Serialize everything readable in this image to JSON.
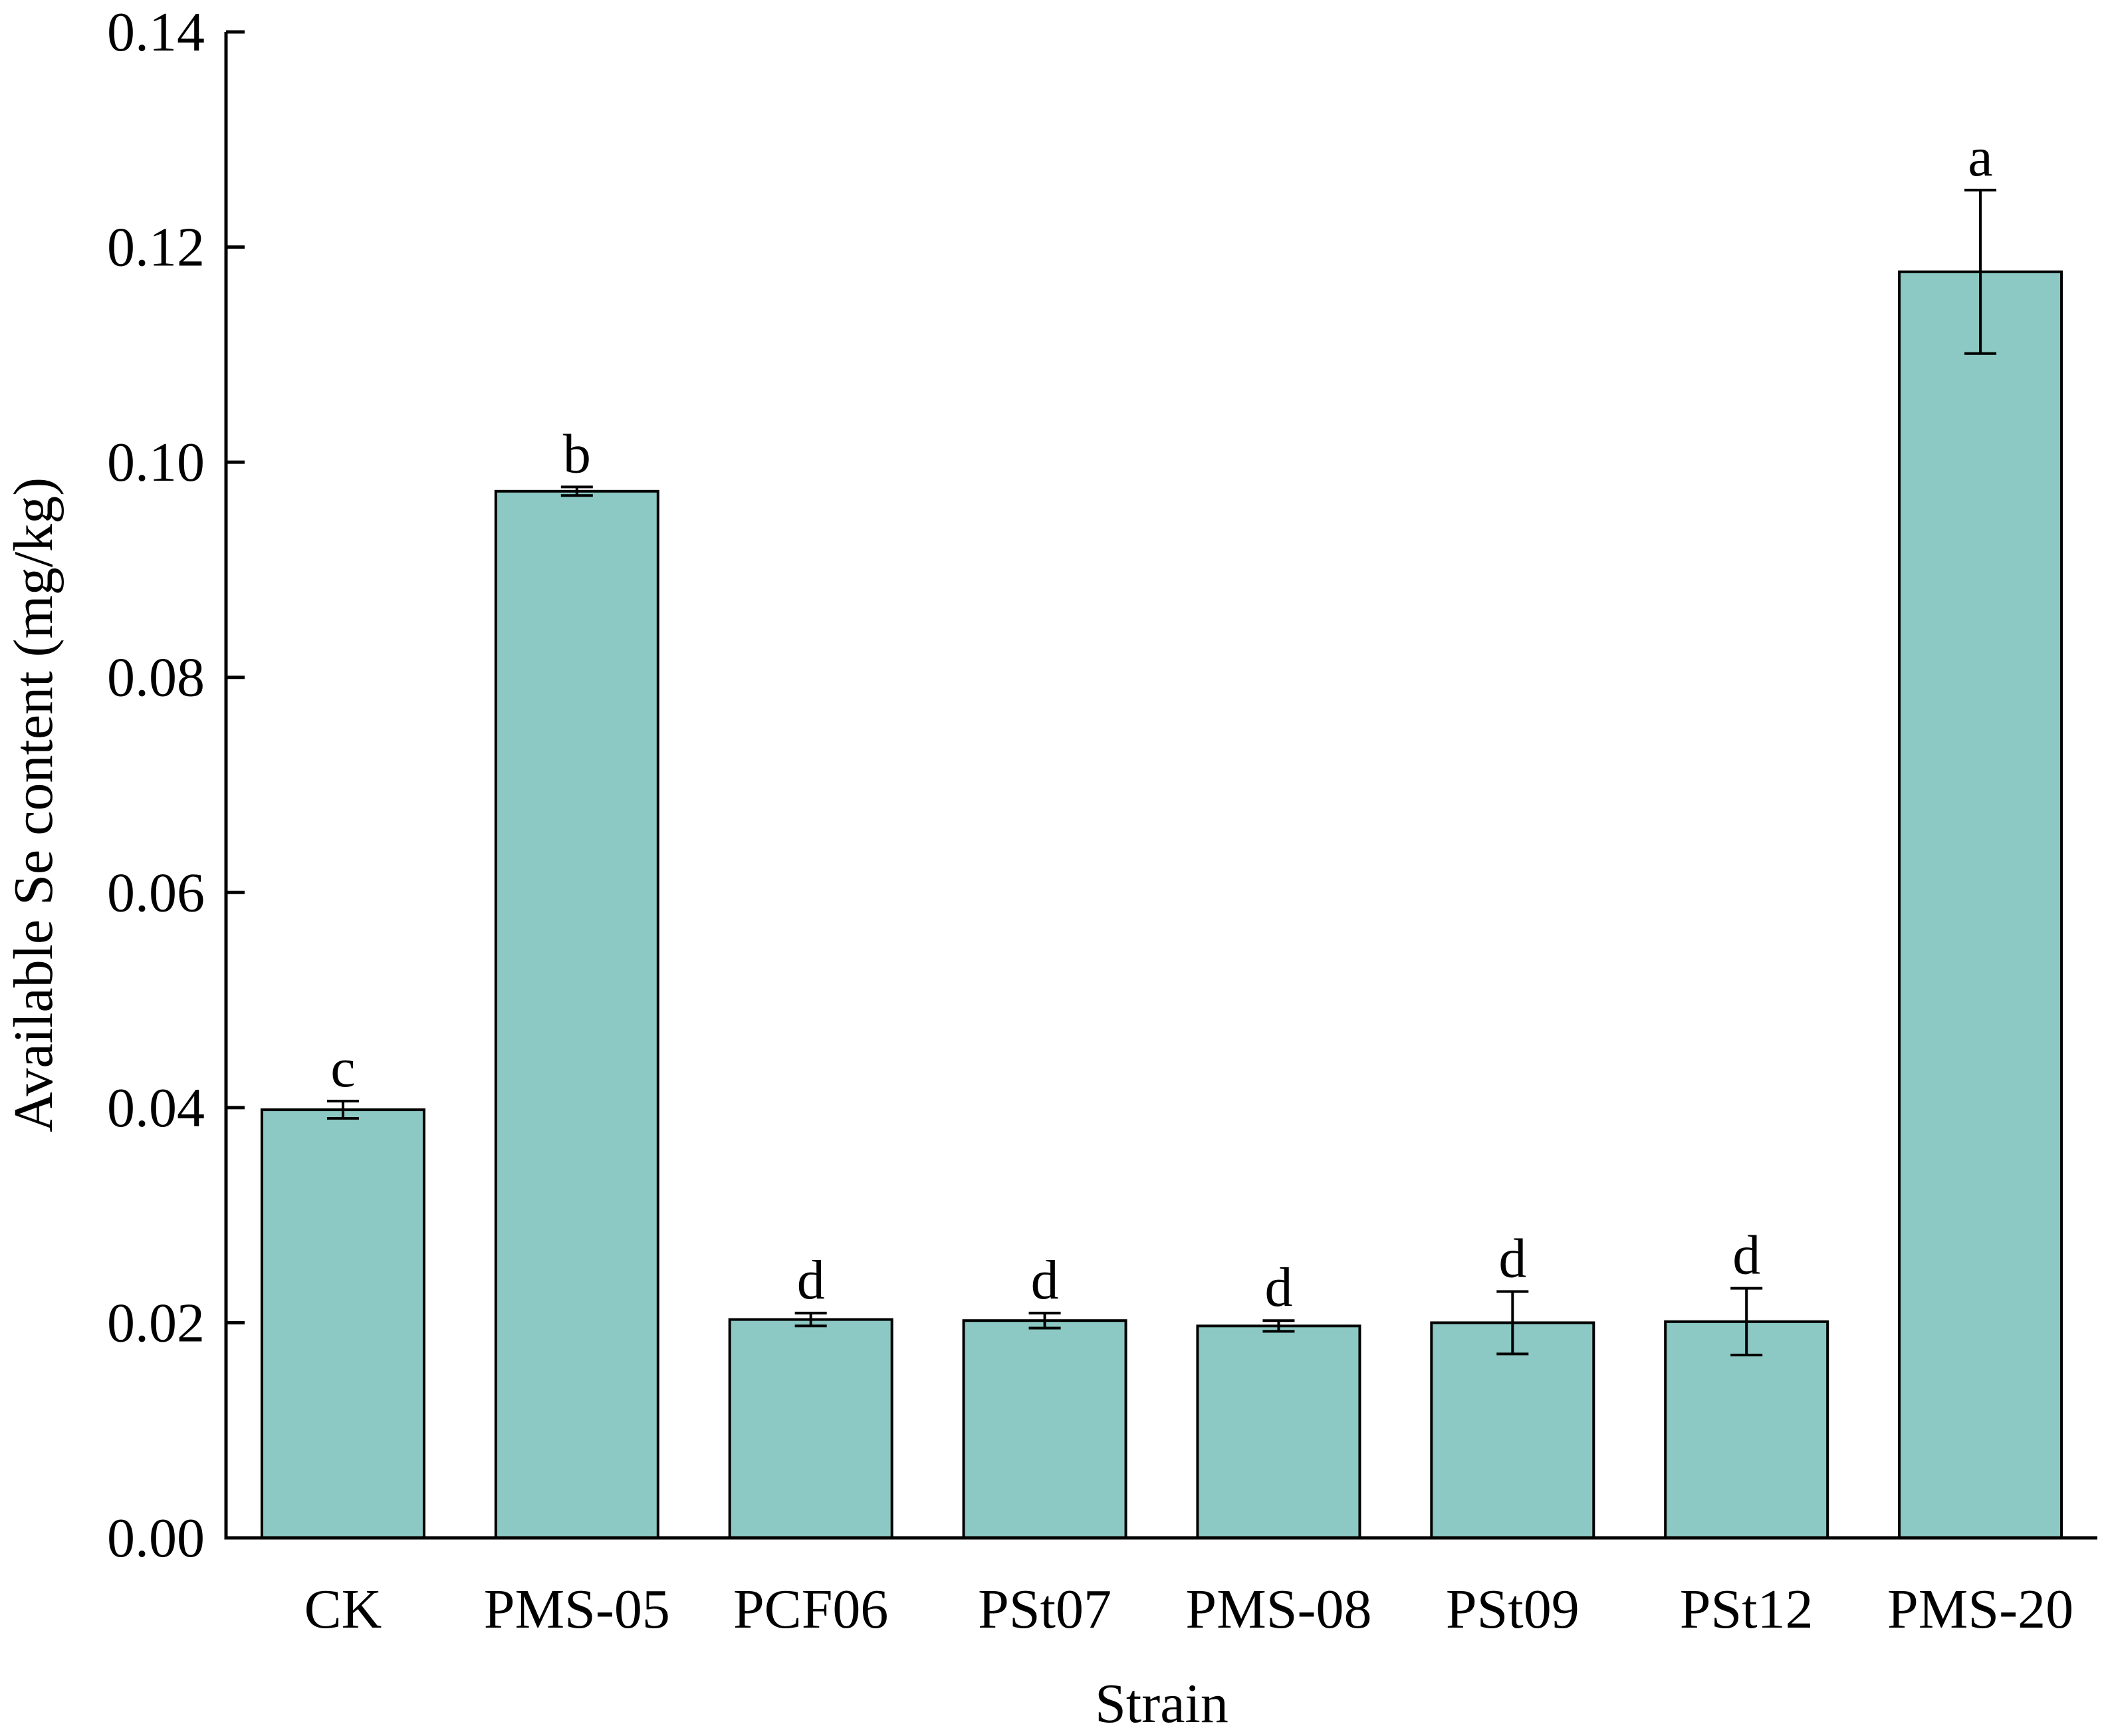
{
  "chart_data": {
    "type": "bar",
    "xlabel": "Strain",
    "ylabel": "Available Se content (mg/kg)",
    "ylim": [
      0,
      0.14
    ],
    "yticks": [
      "0.00",
      "0.02",
      "0.04",
      "0.06",
      "0.08",
      "0.10",
      "0.12",
      "0.14"
    ],
    "grid": false,
    "bar_color": "#8CC8C4",
    "categories": [
      "CK",
      "PMS-05",
      "PCF06",
      "PSt07",
      "PMS-08",
      "PSt09",
      "PSt12",
      "PMS-20"
    ],
    "values": [
      0.0398,
      0.0973,
      0.0203,
      0.0202,
      0.0197,
      0.02,
      0.0201,
      0.1177
    ],
    "errors": [
      0.0008,
      0.0004,
      0.0006,
      0.0007,
      0.0005,
      0.0029,
      0.0031,
      0.0076
    ],
    "significance": [
      "c",
      "b",
      "d",
      "d",
      "d",
      "d",
      "d",
      "a"
    ]
  }
}
